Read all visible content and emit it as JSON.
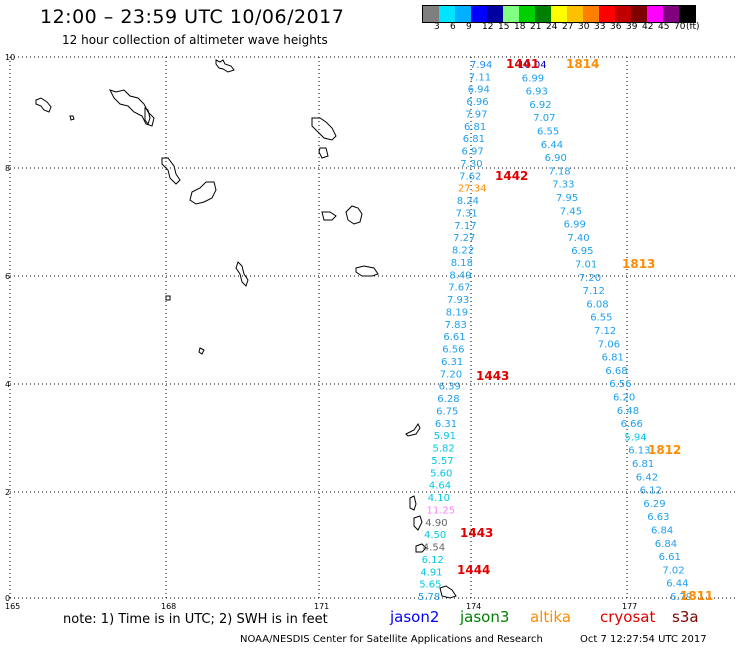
{
  "header": {
    "title": "12:00 – 23:59 UTC 10/06/2017",
    "subtitle": "12 hour collection of altimeter wave heights"
  },
  "color_scale": {
    "colors": [
      "#7f7f7f",
      "#00e5ff",
      "#00b0ff",
      "#0000ff",
      "#0000a0",
      "#80ff80",
      "#00d000",
      "#008000",
      "#ffff00",
      "#ffc000",
      "#ff8000",
      "#ff0000",
      "#c00000",
      "#800000",
      "#ff00ff",
      "#800080",
      "#000000"
    ],
    "labels": [
      "3",
      "6",
      "9",
      "12",
      "15",
      "18",
      "21",
      "24",
      "27",
      "30",
      "33",
      "36",
      "39",
      "42",
      "45",
      "70",
      "(ft)"
    ]
  },
  "map": {
    "x_ticks": [
      "165",
      "168",
      "171",
      "174",
      "177"
    ],
    "y_ticks": [
      "0",
      "2",
      "4",
      "6",
      "8",
      "10"
    ],
    "passes": [
      {
        "id": "1441",
        "color": "#e00000"
      },
      {
        "id": "1814",
        "color": "#ff8c00"
      },
      {
        "id": "1442",
        "color": "#e00000"
      },
      {
        "id": "1813",
        "color": "#ff8c00"
      },
      {
        "id": "1443",
        "color": "#e00000"
      },
      {
        "id": "1812",
        "color": "#ff8c00"
      },
      {
        "id": "1443",
        "color": "#e00000"
      },
      {
        "id": "1444",
        "color": "#e00000"
      },
      {
        "id": "1811",
        "color": "#ff8c00"
      }
    ],
    "track_a": {
      "values": [
        "7.94",
        "7.11",
        "6.94",
        "6.96",
        "7.97",
        "6.81",
        "6.81",
        "6.97",
        "7.30",
        "7.62",
        "27.34",
        "8.24",
        "7.31",
        "7.17",
        "7.27",
        "8.22",
        "8.18",
        "8.49",
        "7.67",
        "7.93",
        "8.19",
        "7.83",
        "6.61",
        "6.56",
        "6.31",
        "7.20",
        "6.39",
        "6.28",
        "6.75",
        "6.31",
        "5.91",
        "5.82",
        "5.57",
        "5.60",
        "4.64",
        "4.10",
        "11.25",
        "4.90",
        "4.50",
        "4.54",
        "6.12",
        "4.91",
        "5.65",
        "5.78"
      ],
      "colors": [
        "#1e90ff",
        "#1ea0f0",
        "#1ea0f0",
        "#1ea0f0",
        "#1ea0f0",
        "#1ea0f0",
        "#1ea0f0",
        "#1ea0f0",
        "#1ea0f0",
        "#1ea0f0",
        "#ff8c00",
        "#1ea0f0",
        "#1ea0f0",
        "#1ea0f0",
        "#1ea0f0",
        "#1ea0f0",
        "#1ea0f0",
        "#1ea0f0",
        "#1ea0f0",
        "#1ea0f0",
        "#1ea0f0",
        "#1ea0f0",
        "#1ea0f0",
        "#1ea0f0",
        "#1ea0f0",
        "#1ea0f0",
        "#1ea0f0",
        "#1ea0f0",
        "#1ea0f0",
        "#1ea0f0",
        "#00c8e6",
        "#00c8e6",
        "#00c8e6",
        "#00c8e6",
        "#00c8e6",
        "#00c8e6",
        "#ff80ff",
        "#666666",
        "#00c8e6",
        "#666666",
        "#00c8e6",
        "#00c8e6",
        "#00c8e6",
        "#1ea0f0"
      ]
    },
    "track_b": {
      "values": [
        "10.04",
        "6.99",
        "6.93",
        "6.92",
        "7.07",
        "6.55",
        "6.44",
        "6.90",
        "7.18",
        "7.33",
        "7.95",
        "7.45",
        "6.99",
        "7.40",
        "6.95",
        "7.01",
        "7.20",
        "7.12",
        "6.08",
        "6.55",
        "7.12",
        "7.06",
        "6.81",
        "6.68",
        "6.56",
        "6.20",
        "6.48",
        "6.66",
        "5.94",
        "6.13",
        "6.81",
        "6.42",
        "6.12",
        "6.29",
        "6.63",
        "6.84",
        "6.84",
        "6.61",
        "7.02",
        "6.44",
        "6.79"
      ],
      "colors": [
        "#0000c0",
        "#1ea0f0",
        "#1ea0f0",
        "#1ea0f0",
        "#1ea0f0",
        "#1ea0f0",
        "#1ea0f0",
        "#1ea0f0",
        "#1ea0f0",
        "#1ea0f0",
        "#1ea0f0",
        "#1ea0f0",
        "#1ea0f0",
        "#1ea0f0",
        "#1ea0f0",
        "#1ea0f0",
        "#1ea0f0",
        "#1ea0f0",
        "#1ea0f0",
        "#1ea0f0",
        "#1ea0f0",
        "#1ea0f0",
        "#1ea0f0",
        "#1ea0f0",
        "#1ea0f0",
        "#1ea0f0",
        "#1ea0f0",
        "#1ea0f0",
        "#00c8e6",
        "#1ea0f0",
        "#1ea0f0",
        "#1ea0f0",
        "#1ea0f0",
        "#1ea0f0",
        "#1ea0f0",
        "#1ea0f0",
        "#1ea0f0",
        "#1ea0f0",
        "#1ea0f0",
        "#1ea0f0",
        "#1ea0f0"
      ]
    }
  },
  "footer": {
    "note": "note: 1) Time is in UTC; 2) SWH is in feet",
    "satellites": [
      {
        "label": "jason2",
        "color": "#0000ff"
      },
      {
        "label": "jason3",
        "color": "#008000"
      },
      {
        "label": "altika",
        "color": "#ff8c00"
      },
      {
        "label": "cryosat",
        "color": "#e00000"
      },
      {
        "label": "s3a",
        "color": "#800000"
      }
    ],
    "credit": "NOAA/NESDIS Center for Satellite Applications and Research",
    "timestamp": "Oct  7 12:27:54 UTC 2017"
  }
}
